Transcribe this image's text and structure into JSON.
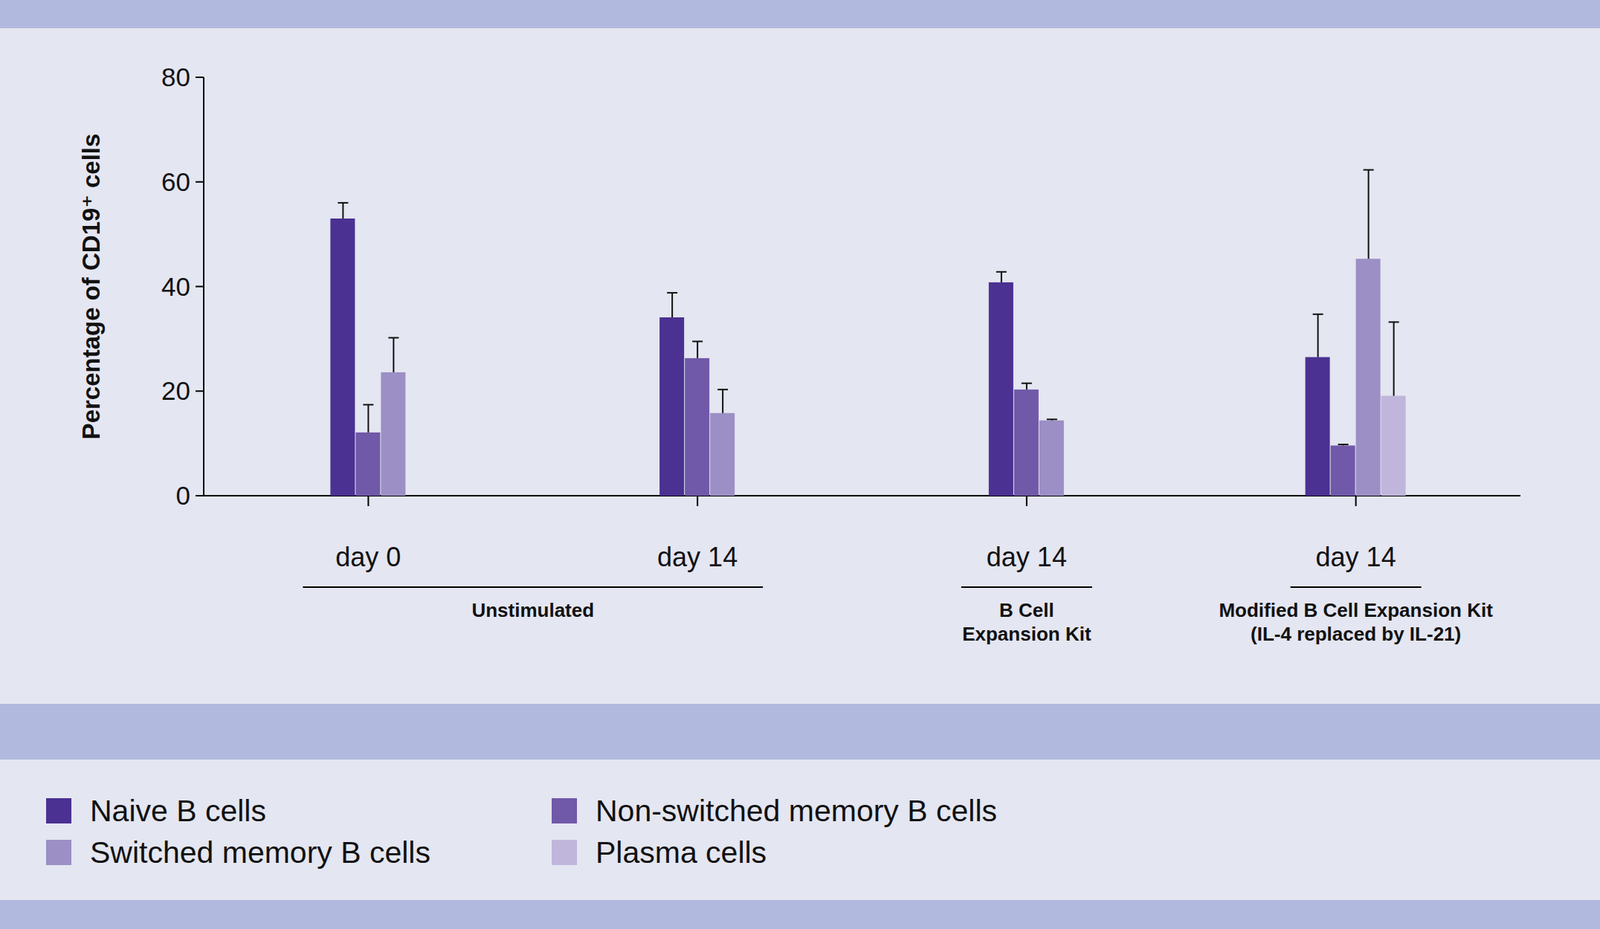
{
  "chart_data": {
    "type": "bar",
    "y_label": "Percentage of CD19⁺ cells",
    "categories": [
      "day 0",
      "day 14",
      "day 14",
      "day 14"
    ],
    "category_groups": [
      {
        "label": "Unstimulated",
        "span": [
          0,
          1
        ]
      },
      {
        "label": "B Cell\nExpansion Kit",
        "span": [
          2,
          2
        ]
      },
      {
        "label": "Modified B Cell Expansion Kit\n(IL-4 replaced by IL-21)",
        "span": [
          3,
          3
        ]
      }
    ],
    "series": [
      {
        "name": "Naive B cells",
        "color": "#4a3192",
        "values": [
          53,
          34.1,
          40.8,
          26.5
        ],
        "errors": [
          3,
          4.7,
          2,
          8.2
        ]
      },
      {
        "name": "Non-switched memory B cells",
        "color": "#7059a8",
        "values": [
          12.1,
          26.3,
          20.3,
          9.6
        ],
        "errors": [
          5.3,
          3.2,
          1.2,
          0.2
        ]
      },
      {
        "name": "Switched memory B cells",
        "color": "#9b8fc6",
        "values": [
          23.6,
          15.8,
          14.4,
          45.3
        ],
        "errors": [
          6.6,
          4.5,
          0.2,
          17
        ]
      },
      {
        "name": "Plasma cells",
        "color": "#c0b6db",
        "values": [
          null,
          null,
          null,
          19.1
        ],
        "errors": [
          null,
          null,
          null,
          14.1
        ]
      }
    ],
    "ylim": [
      0,
      80
    ],
    "yticks": [
      0,
      20,
      40,
      60,
      80
    ],
    "grid": false,
    "legend": "bottom"
  }
}
